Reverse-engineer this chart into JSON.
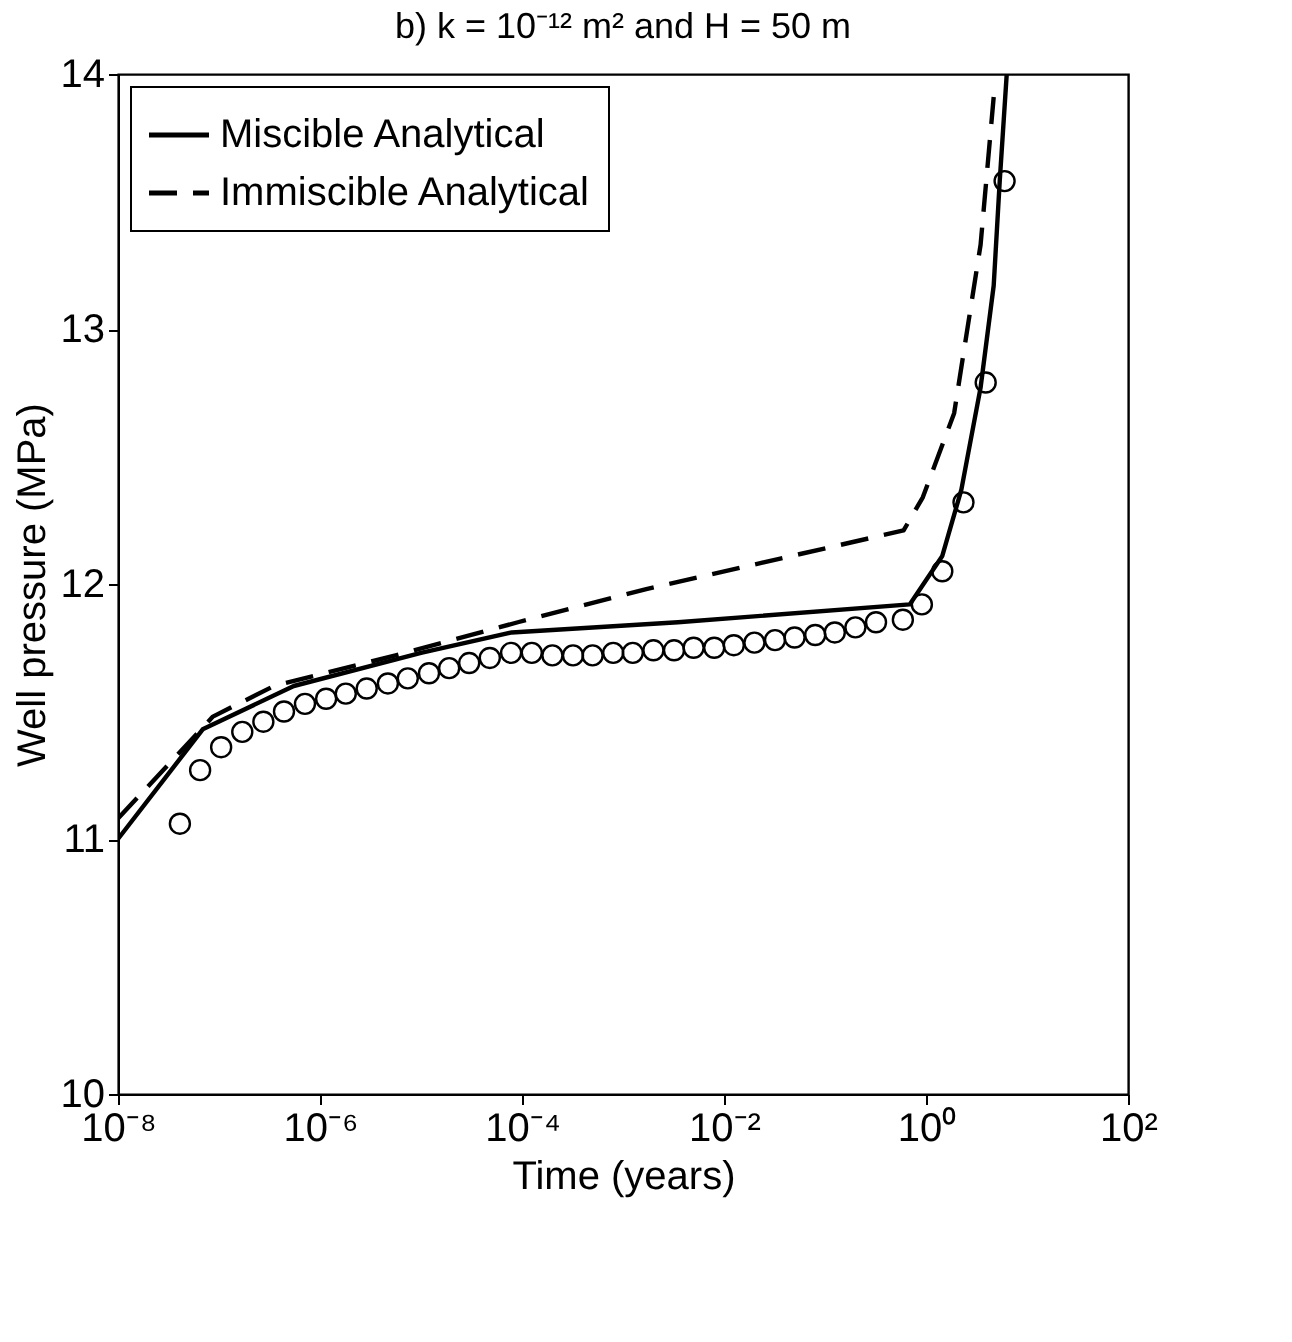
{
  "chart_data": {
    "type": "line",
    "title": "b) k = 10⁻¹² m² and H = 50 m",
    "xlabel": "Time (years)",
    "ylabel": "Well pressure (MPa)",
    "log": "x",
    "xlim": [
      1e-08,
      100
    ],
    "xticks": [
      {
        "value": 1e-08,
        "label": "10⁻⁸"
      },
      {
        "value": 1e-06,
        "label": "10⁻⁶"
      },
      {
        "value": 0.0001,
        "label": "10⁻⁴"
      },
      {
        "value": 0.01,
        "label": "10⁻²"
      },
      {
        "value": 1,
        "label": "10⁰"
      },
      {
        "value": 100,
        "label": "10²"
      }
    ],
    "ylim": [
      10,
      14
    ],
    "yticks": [
      10,
      11,
      12,
      13,
      14
    ],
    "grid": false,
    "legend": "top left",
    "series": [
      {
        "type": "scatter",
        "marker": "circle",
        "color": "#000000",
        "x": [
          4.1e-08,
          6.5e-08,
          1.05e-07,
          1.7e-07,
          2.75e-07,
          4.4e-07,
          7.1e-07,
          1.15e-06,
          1.8e-06,
          2.9e-06,
          4.7e-06,
          7.4e-06,
          1.2e-05,
          1.9e-05,
          3e-05,
          4.8e-05,
          7.8e-05,
          0.000125,
          0.0002,
          0.00032,
          0.0005,
          0.0008,
          0.00125,
          0.002,
          0.0032,
          0.005,
          0.008,
          0.0125,
          0.02,
          0.032,
          0.05,
          0.08,
          0.125,
          0.2,
          0.32,
          0.59,
          0.91,
          1.45,
          2.35,
          3.9,
          6.0
        ],
        "values": [
          11.06,
          11.27,
          11.36,
          11.42,
          11.46,
          11.5,
          11.53,
          11.55,
          11.57,
          11.59,
          11.61,
          11.63,
          11.65,
          11.67,
          11.69,
          11.71,
          11.73,
          11.73,
          11.72,
          11.72,
          11.72,
          11.73,
          11.73,
          11.74,
          11.74,
          11.75,
          11.75,
          11.76,
          11.77,
          11.78,
          11.79,
          11.8,
          11.81,
          11.83,
          11.85,
          11.86,
          11.92,
          12.05,
          12.32,
          12.79,
          13.58
        ]
      },
      {
        "type": "line",
        "name": "Miscible Analytical",
        "line_style": "solid",
        "marker": "none",
        "color": "#000000",
        "x": [
          1e-08,
          6.9e-08,
          5.5e-07,
          1e-05,
          7.9e-05,
          0.0035,
          0.69,
          1.45,
          2.24,
          3.47,
          4.68,
          5.37,
          6.3
        ],
        "values": [
          11.0,
          11.43,
          11.6,
          11.73,
          11.81,
          11.85,
          11.92,
          12.11,
          12.37,
          12.77,
          13.17,
          13.58,
          14.0
        ]
      },
      {
        "type": "line",
        "name": "Immiscible Analytical",
        "line_style": "dashed",
        "marker": "none",
        "color": "#000000",
        "x": [
          1e-08,
          8.7e-08,
          3.5e-07,
          5.6e-06,
          9.1e-05,
          0.0017,
          0.6,
          0.93,
          1.9,
          3.47,
          4.68
        ],
        "values": [
          11.08,
          11.48,
          11.6,
          11.72,
          11.85,
          11.98,
          12.21,
          12.34,
          12.67,
          13.33,
          13.91
        ]
      }
    ]
  }
}
